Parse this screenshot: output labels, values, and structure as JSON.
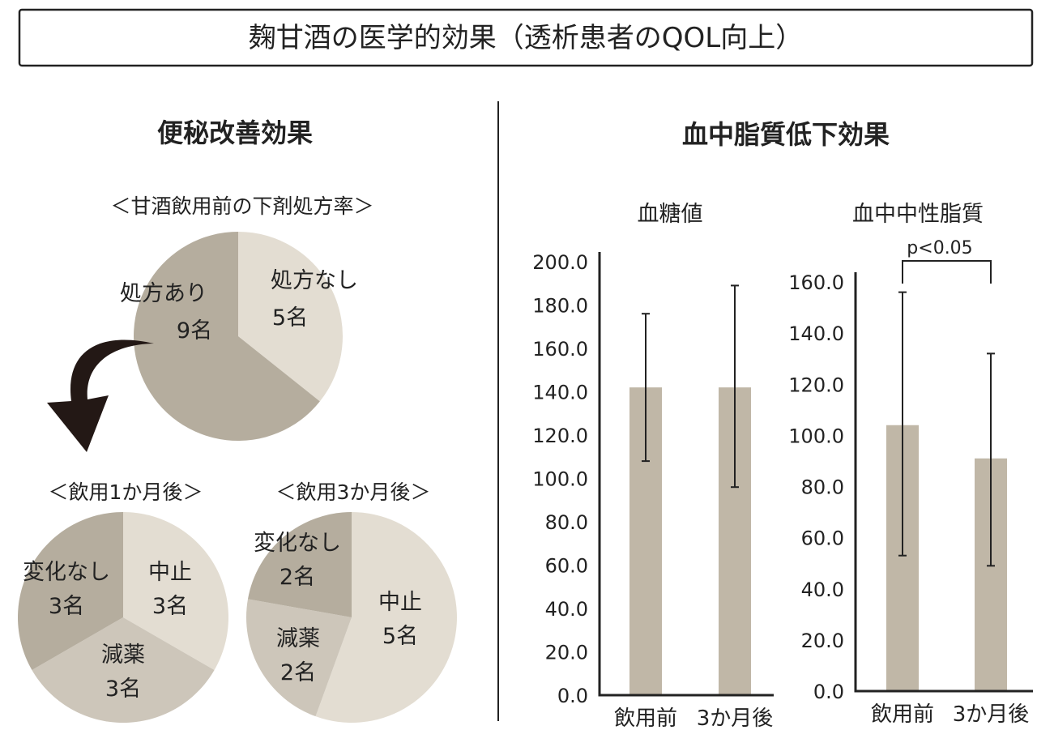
{
  "page_title": "麹甘酒の医学的効果（透析患者のQOL向上）",
  "colors": {
    "dark": "#b5ad9e",
    "mid": "#cdc6ba",
    "light": "#e3ddd2",
    "bar": "#c0b7a7",
    "ink": "#222222",
    "arrow": "#231815"
  },
  "left_section": {
    "heading": "便秘改善効果",
    "before_caption": "＜甘酒飲用前の下剤処方率＞",
    "month1_caption": "＜飲用1か月後＞",
    "month3_caption": "＜飲用3か月後＞"
  },
  "right_section": {
    "heading": "血中脂質低下効果",
    "significance": "p<0.05"
  },
  "chart_data": [
    {
      "type": "pie",
      "title": "＜甘酒飲用前の下剤処方率＞",
      "slices": [
        {
          "label": "処方なし",
          "count": "5名",
          "value": 5,
          "color": "#e3ddd2"
        },
        {
          "label": "処方あり",
          "count": "9名",
          "value": 9,
          "color": "#b5ad9e"
        }
      ]
    },
    {
      "type": "pie",
      "title": "＜飲用1か月後＞",
      "slices": [
        {
          "label": "中止",
          "count": "3名",
          "value": 3,
          "color": "#e3ddd2"
        },
        {
          "label": "減薬",
          "count": "3名",
          "value": 3,
          "color": "#cdc6ba"
        },
        {
          "label": "変化なし",
          "count": "3名",
          "value": 3,
          "color": "#b5ad9e"
        }
      ]
    },
    {
      "type": "pie",
      "title": "＜飲用3か月後＞",
      "slices": [
        {
          "label": "中止",
          "count": "5名",
          "value": 5,
          "color": "#e3ddd2"
        },
        {
          "label": "減薬",
          "count": "2名",
          "value": 2,
          "color": "#cdc6ba"
        },
        {
          "label": "変化なし",
          "count": "2名",
          "value": 2,
          "color": "#b5ad9e"
        }
      ]
    },
    {
      "type": "bar",
      "title": "血糖値",
      "categories": [
        "飲用前",
        "3か月後"
      ],
      "values": [
        142,
        142
      ],
      "error_low": [
        108,
        96
      ],
      "error_high": [
        176,
        189
      ],
      "ylim": [
        0,
        200
      ],
      "yticks": [
        0,
        20,
        40,
        60,
        80,
        100,
        120,
        140,
        160,
        180,
        200
      ],
      "tick_labels": [
        "0.0",
        "20.0",
        "40.0",
        "60.0",
        "80.0",
        "100.0",
        "120.0",
        "140.0",
        "160.0",
        "180.0",
        "200.0"
      ]
    },
    {
      "type": "bar",
      "title": "血中中性脂質",
      "categories": [
        "飲用前",
        "3か月後"
      ],
      "values": [
        104,
        91
      ],
      "error_low": [
        53,
        49
      ],
      "error_high": [
        156,
        132
      ],
      "ylim": [
        0,
        160
      ],
      "yticks": [
        0,
        20,
        40,
        60,
        80,
        100,
        120,
        140,
        160
      ],
      "tick_labels": [
        "0.0",
        "20.0",
        "40.0",
        "60.0",
        "80.0",
        "100.0",
        "120.0",
        "140.0",
        "160.0"
      ]
    }
  ]
}
